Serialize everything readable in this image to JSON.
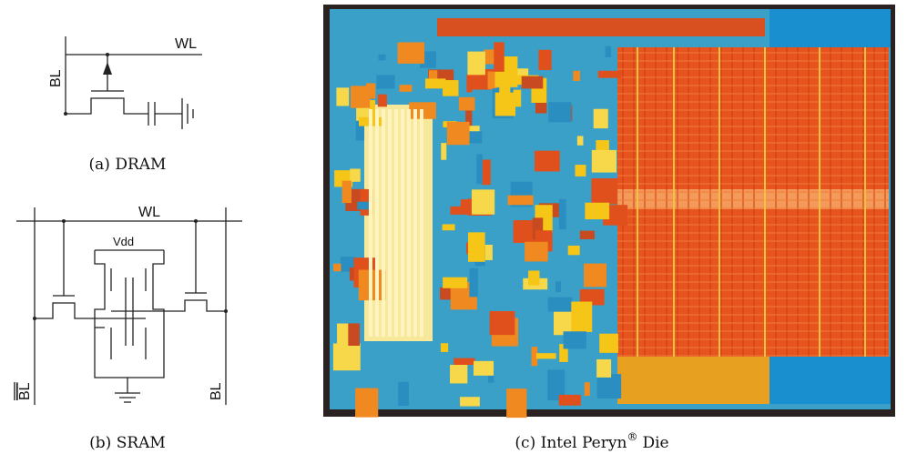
{
  "dram": {
    "wl": "WL",
    "bl": "BL",
    "caption": "(a) DRAM"
  },
  "sram": {
    "wl": "WL",
    "vdd": "Vdd",
    "bl_bar": "BL",
    "bl": "BL",
    "caption": "(b) SRAM"
  },
  "die": {
    "caption": "(c) Intel Peryn",
    "mark": "®",
    "caption_end": "Die"
  }
}
